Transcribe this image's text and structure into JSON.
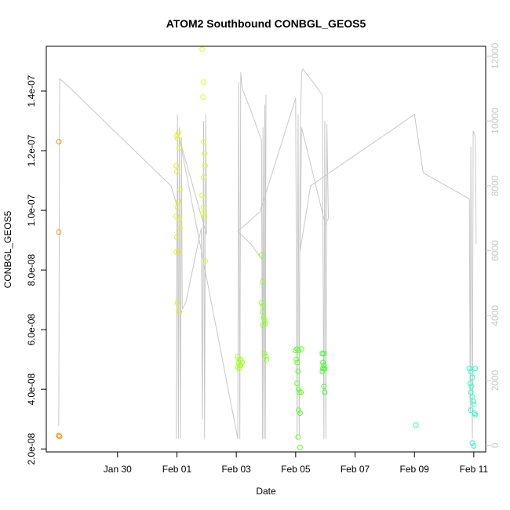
{
  "chart_data": {
    "type": "scatter",
    "title": "ATOM2 Southbound CONBGL_GEOS5",
    "xlabel": "Date",
    "ylabel": "CONBGL_GEOS5",
    "ylabel_right": "",
    "xlim": [
      27.6,
      42.4
    ],
    "ylim": [
      1.9e-08,
      1.55e-07
    ],
    "ylim_right": [
      -200,
      12300
    ],
    "x_ticks": [
      {
        "value": 30,
        "label": "Jan 30"
      },
      {
        "value": 32,
        "label": "Feb 01"
      },
      {
        "value": 34,
        "label": "Feb 03"
      },
      {
        "value": 36,
        "label": "Feb 05"
      },
      {
        "value": 38,
        "label": "Feb 07"
      },
      {
        "value": 40,
        "label": "Feb 09"
      },
      {
        "value": 42,
        "label": "Feb 11"
      }
    ],
    "y_ticks": [
      {
        "value": 2e-08,
        "label": "2.0e-08"
      },
      {
        "value": 4e-08,
        "label": "4.0e-08"
      },
      {
        "value": 6e-08,
        "label": "6.0e-08"
      },
      {
        "value": 8e-08,
        "label": "8.0e-08"
      },
      {
        "value": 1e-07,
        "label": "1.0e-07"
      },
      {
        "value": 1.2e-07,
        "label": "1.2e-07"
      },
      {
        "value": 1.4e-07,
        "label": "1.4e-07"
      }
    ],
    "y_right_ticks": [
      {
        "value": 0,
        "label": "0"
      },
      {
        "value": 2000,
        "label": "2000"
      },
      {
        "value": 4000,
        "label": "4000"
      },
      {
        "value": 6000,
        "label": "6000"
      },
      {
        "value": 8000,
        "label": "8000"
      },
      {
        "value": 10000,
        "label": "10000"
      },
      {
        "value": 12000,
        "label": "12000"
      }
    ],
    "grid": false,
    "legend": "none",
    "colors": {
      "altitude_line": "#c8c8c8",
      "points_gradient": [
        "#ff8c00",
        "#dfff2a",
        "#2dff2d",
        "#2dffc8"
      ]
    },
    "points": [
      [
        28.02,
        1.23e-07
      ],
      [
        28.02,
        9.27e-08
      ],
      [
        28.02,
        2.45e-08
      ],
      [
        28.05,
        2.42e-08
      ],
      [
        32.0,
        1.25e-07
      ],
      [
        32.03,
        1.24e-07
      ],
      [
        31.98,
        1.15e-07
      ],
      [
        32.05,
        1.26e-07
      ],
      [
        32.08,
        1.21e-07
      ],
      [
        32.0,
        1.13e-07
      ],
      [
        32.1,
        1.07e-07
      ],
      [
        32.05,
        1.03e-07
      ],
      [
        32.02,
        1.01e-07
      ],
      [
        31.98,
        9.8e-08
      ],
      [
        32.08,
        9.7e-08
      ],
      [
        32.1,
        9.4e-08
      ],
      [
        32.0,
        9.1e-08
      ],
      [
        32.05,
        8.6e-08
      ],
      [
        32.02,
        6.9e-08
      ],
      [
        32.08,
        6.6e-08
      ],
      [
        31.98,
        8.6e-08
      ],
      [
        32.85,
        1.54e-07
      ],
      [
        32.9,
        1.43e-07
      ],
      [
        32.88,
        1.38e-07
      ],
      [
        32.9,
        1.23e-07
      ],
      [
        32.93,
        1.19e-07
      ],
      [
        32.95,
        1.15e-07
      ],
      [
        32.9,
        1.11e-07
      ],
      [
        32.85,
        1.05e-07
      ],
      [
        32.9,
        1.01e-07
      ],
      [
        32.88,
        9.9e-08
      ],
      [
        32.93,
        9.8e-08
      ],
      [
        32.95,
        8.3e-08
      ],
      [
        34.05,
        5.1e-08
      ],
      [
        34.1,
        5e-08
      ],
      [
        34.08,
        4.9e-08
      ],
      [
        34.12,
        4.8e-08
      ],
      [
        34.05,
        4.75e-08
      ],
      [
        34.15,
        4.8e-08
      ],
      [
        34.2,
        4.9e-08
      ],
      [
        34.1,
        4.7e-08
      ],
      [
        34.15,
        5e-08
      ],
      [
        34.85,
        8.5e-08
      ],
      [
        34.88,
        7.6e-08
      ],
      [
        34.85,
        6.9e-08
      ],
      [
        34.9,
        6.8e-08
      ],
      [
        34.88,
        6.6e-08
      ],
      [
        34.92,
        6.4e-08
      ],
      [
        34.95,
        6.3e-08
      ],
      [
        34.98,
        6.2e-08
      ],
      [
        34.9,
        6.15e-08
      ],
      [
        34.95,
        5.2e-08
      ],
      [
        35.0,
        5.1e-08
      ],
      [
        35.02,
        5e-08
      ],
      [
        36.0,
        5.3e-08
      ],
      [
        36.05,
        5.35e-08
      ],
      [
        36.1,
        5.3e-08
      ],
      [
        36.02,
        5e-08
      ],
      [
        36.05,
        4.9e-08
      ],
      [
        36.08,
        4.6e-08
      ],
      [
        36.05,
        4.2e-08
      ],
      [
        36.1,
        4e-08
      ],
      [
        36.12,
        3.9e-08
      ],
      [
        36.1,
        3.3e-08
      ],
      [
        36.15,
        3.2e-08
      ],
      [
        36.08,
        2.4e-08
      ],
      [
        36.15,
        2.05e-08
      ],
      [
        36.2,
        5.35e-08
      ],
      [
        36.18,
        3.9e-08
      ],
      [
        36.9,
        5.2e-08
      ],
      [
        36.95,
        5.2e-08
      ],
      [
        36.92,
        4.9e-08
      ],
      [
        36.95,
        4.8e-08
      ],
      [
        36.98,
        4.7e-08
      ],
      [
        36.9,
        4.6e-08
      ],
      [
        36.95,
        4.1e-08
      ],
      [
        36.98,
        3.9e-08
      ],
      [
        36.92,
        4.7e-08
      ],
      [
        40.05,
        2.8e-08
      ],
      [
        41.85,
        4.7e-08
      ],
      [
        41.9,
        4.6e-08
      ],
      [
        41.95,
        4.4e-08
      ],
      [
        41.88,
        4.2e-08
      ],
      [
        41.92,
        4.1e-08
      ],
      [
        41.9,
        3.9e-08
      ],
      [
        41.95,
        3.75e-08
      ],
      [
        41.98,
        3.6e-08
      ],
      [
        42.0,
        3.5e-08
      ],
      [
        41.9,
        3.3e-08
      ],
      [
        42.02,
        3.2e-08
      ],
      [
        42.05,
        3.15e-08
      ],
      [
        41.95,
        2.2e-08
      ],
      [
        42.0,
        2.1e-08
      ],
      [
        42.05,
        4.7e-08
      ]
    ],
    "altitude": [
      [
        28.02,
        600
      ],
      [
        28.05,
        11300
      ],
      [
        28.3,
        11100
      ],
      [
        31.8,
        8000
      ],
      [
        32.0,
        7400
      ],
      [
        31.98,
        200
      ],
      [
        32.02,
        10200
      ],
      [
        32.05,
        200
      ],
      [
        32.08,
        9800
      ],
      [
        32.12,
        200
      ],
      [
        32.15,
        9500
      ],
      [
        32.18,
        4200
      ],
      [
        32.3,
        4400
      ],
      [
        32.82,
        6700
      ],
      [
        32.86,
        800
      ],
      [
        32.9,
        10000
      ],
      [
        32.93,
        200
      ],
      [
        32.97,
        10200
      ],
      [
        33.0,
        6500
      ],
      [
        32.1,
        9400
      ],
      [
        34.05,
        200
      ],
      [
        34.08,
        11200
      ],
      [
        34.12,
        200
      ],
      [
        34.15,
        11500
      ],
      [
        34.2,
        11000
      ],
      [
        34.5,
        10300
      ],
      [
        34.85,
        9400
      ],
      [
        34.88,
        200
      ],
      [
        34.9,
        9800
      ],
      [
        34.93,
        200
      ],
      [
        34.96,
        10500
      ],
      [
        34.98,
        200
      ],
      [
        35.0,
        10800
      ],
      [
        34.96,
        5600
      ],
      [
        34.5,
        6200
      ],
      [
        34.05,
        6600
      ],
      [
        34.8,
        7200
      ],
      [
        36.0,
        10700
      ],
      [
        36.05,
        200
      ],
      [
        36.08,
        10200
      ],
      [
        36.12,
        300
      ],
      [
        36.15,
        9700
      ],
      [
        36.2,
        11500
      ],
      [
        36.25,
        11600
      ],
      [
        36.9,
        10800
      ],
      [
        36.95,
        200
      ],
      [
        36.98,
        10000
      ],
      [
        37.02,
        200
      ],
      [
        37.05,
        9900
      ],
      [
        37.1,
        7000
      ],
      [
        37.0,
        6800
      ],
      [
        36.2,
        9800
      ],
      [
        36.15,
        6000
      ],
      [
        36.5,
        8000
      ],
      [
        40.0,
        10200
      ],
      [
        40.3,
        8400
      ],
      [
        41.85,
        7600
      ],
      [
        41.88,
        1000
      ],
      [
        41.9,
        9200
      ],
      [
        41.95,
        200
      ],
      [
        41.98,
        9700
      ],
      [
        42.05,
        9500
      ],
      [
        42.08,
        6200
      ]
    ]
  }
}
